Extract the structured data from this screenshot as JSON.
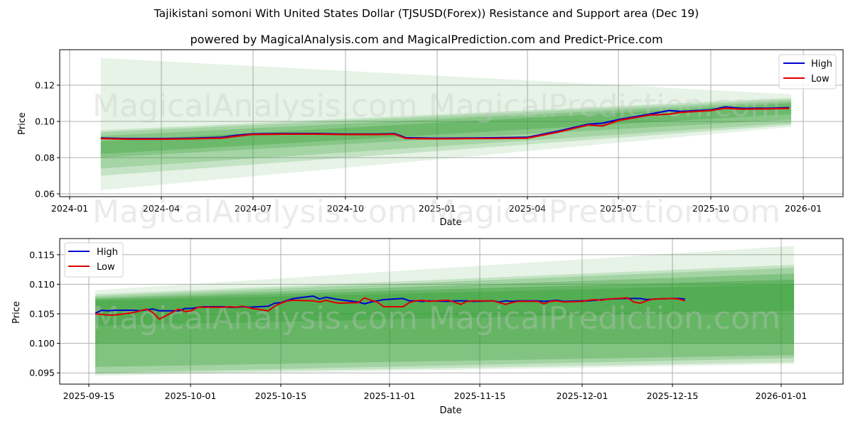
{
  "header": {
    "title": "Tajikistani somoni With United States Dollar (TJSUSD(Forex)) Resistance and Support area (Dec 19)",
    "subtitle": "powered by MagicalAnalysis.com and MagicalPrediction.com and Predict-Price.com"
  },
  "watermarks": [
    "MagicalAnalysis.com",
    "MagicalPrediction.com"
  ],
  "colors": {
    "high": "#0000cc",
    "low": "#dd0000",
    "band": "#2e9a2e",
    "grid": "#b0b0b0"
  },
  "chart_data": [
    {
      "type": "line",
      "title": "Full history with resistance/support bands",
      "xlabel": "Date",
      "ylabel": "Price",
      "ylim": [
        0.059,
        0.14
      ],
      "yticks": [
        "0.06",
        "0.08",
        "0.10",
        "0.12"
      ],
      "xticks": [
        "2024-01",
        "2024-04",
        "2024-07",
        "2024-10",
        "2025-01",
        "2025-04",
        "2025-07",
        "2025-10",
        "2026-01"
      ],
      "grid": true,
      "legend": {
        "position": "upper right",
        "entries": [
          "High",
          "Low"
        ]
      },
      "x": [
        "2024-02-01",
        "2024-03-01",
        "2024-04-01",
        "2024-05-01",
        "2024-06-01",
        "2024-06-15",
        "2024-07-01",
        "2024-08-01",
        "2024-09-01",
        "2024-10-01",
        "2024-11-01",
        "2024-11-20",
        "2024-12-01",
        "2025-01-01",
        "2025-02-01",
        "2025-03-01",
        "2025-04-01",
        "2025-05-01",
        "2025-06-01",
        "2025-06-15",
        "2025-07-01",
        "2025-08-01",
        "2025-08-20",
        "2025-09-01",
        "2025-10-01",
        "2025-10-15",
        "2025-11-01",
        "2025-12-01",
        "2025-12-18"
      ],
      "series": [
        {
          "name": "High",
          "values": [
            0.0908,
            0.0905,
            0.0905,
            0.0907,
            0.0912,
            0.0923,
            0.0931,
            0.0933,
            0.0933,
            0.093,
            0.093,
            0.0932,
            0.091,
            0.0907,
            0.0908,
            0.091,
            0.0912,
            0.0945,
            0.0985,
            0.099,
            0.101,
            0.104,
            0.106,
            0.1055,
            0.1063,
            0.108,
            0.1072,
            0.1073,
            0.1076
          ]
        },
        {
          "name": "Low",
          "values": [
            0.0905,
            0.0902,
            0.0902,
            0.0904,
            0.0908,
            0.0918,
            0.0928,
            0.093,
            0.093,
            0.0928,
            0.0928,
            0.0929,
            0.0906,
            0.0904,
            0.0905,
            0.0906,
            0.0908,
            0.094,
            0.098,
            0.0975,
            0.1005,
            0.1035,
            0.104,
            0.105,
            0.106,
            0.1073,
            0.1068,
            0.107,
            0.1072
          ]
        }
      ],
      "bands": [
        {
          "start": "2024-02-01",
          "end": "2025-12-20",
          "upper": [
            0.135,
            0.115
          ],
          "lower": [
            0.062,
            0.097
          ],
          "opacity": 0.12
        },
        {
          "start": "2024-02-01",
          "end": "2025-12-20",
          "upper": [
            0.095,
            0.113
          ],
          "lower": [
            0.07,
            0.098
          ],
          "opacity": 0.18
        },
        {
          "start": "2024-02-01",
          "end": "2025-12-20",
          "upper": [
            0.094,
            0.112
          ],
          "lower": [
            0.074,
            0.099
          ],
          "opacity": 0.2
        },
        {
          "start": "2024-02-01",
          "end": "2025-12-20",
          "upper": [
            0.092,
            0.111
          ],
          "lower": [
            0.08,
            0.101
          ],
          "opacity": 0.25
        },
        {
          "start": "2024-02-01",
          "end": "2025-12-20",
          "upper": [
            0.089,
            0.11
          ],
          "lower": [
            0.082,
            0.104
          ],
          "opacity": 0.3
        }
      ]
    },
    {
      "type": "line",
      "title": "Recent period zoom with resistance/support bands",
      "xlabel": "Date",
      "ylabel": "Price",
      "ylim": [
        0.0932,
        0.1178
      ],
      "yticks": [
        "0.095",
        "0.100",
        "0.105",
        "0.110",
        "0.115"
      ],
      "xticks": [
        "2025-09-15",
        "2025-10-01",
        "2025-10-15",
        "2025-11-01",
        "2025-11-15",
        "2025-12-01",
        "2025-12-15",
        "2026-01-01"
      ],
      "grid": true,
      "legend": {
        "position": "upper left",
        "entries": [
          "High",
          "Low"
        ]
      },
      "x": [
        "09-16",
        "09-17",
        "09-18",
        "09-19",
        "09-22",
        "09-23",
        "09-24",
        "09-25",
        "09-26",
        "09-29",
        "09-30",
        "10-01",
        "10-02",
        "10-03",
        "10-06",
        "10-07",
        "10-08",
        "10-09",
        "10-10",
        "10-13",
        "10-14",
        "10-15",
        "10-16",
        "10-17",
        "10-20",
        "10-21",
        "10-22",
        "10-23",
        "10-24",
        "10-27",
        "10-28",
        "10-29",
        "10-30",
        "10-31",
        "11-03",
        "11-04",
        "11-05",
        "11-06",
        "11-07",
        "11-10",
        "11-11",
        "11-12",
        "11-13",
        "11-14",
        "11-17",
        "11-18",
        "11-19",
        "11-20",
        "11-21",
        "11-24",
        "11-25",
        "11-26",
        "11-27",
        "11-28",
        "12-01",
        "12-02",
        "12-03",
        "12-04",
        "12-05",
        "12-08",
        "12-09",
        "12-10",
        "12-11",
        "12-12",
        "12-15",
        "12-16",
        "12-17"
      ],
      "series": [
        {
          "name": "High",
          "values": [
            0.1051,
            0.1056,
            0.1055,
            0.1056,
            0.1056,
            0.1055,
            0.1057,
            0.1058,
            0.1055,
            0.1055,
            0.1059,
            0.1059,
            0.1061,
            0.1062,
            0.1062,
            0.1061,
            0.1061,
            0.1062,
            0.1061,
            0.1063,
            0.1068,
            0.1069,
            0.1073,
            0.1076,
            0.108,
            0.1075,
            0.1078,
            0.1076,
            0.1074,
            0.107,
            0.1067,
            0.107,
            0.1072,
            0.1074,
            0.1076,
            0.1072,
            0.1072,
            0.1071,
            0.1072,
            0.1071,
            0.1072,
            0.1072,
            0.1072,
            0.1071,
            0.1072,
            0.107,
            0.1072,
            0.1071,
            0.1072,
            0.1072,
            0.1071,
            0.1072,
            0.1073,
            0.1071,
            0.1072,
            0.1072,
            0.1073,
            0.1074,
            0.1075,
            0.1076,
            0.1076,
            0.1076,
            0.1074,
            0.1075,
            0.1076,
            0.1076,
            0.1075
          ]
        },
        {
          "name": "Low",
          "values": [
            0.105,
            0.1049,
            0.1048,
            0.1048,
            0.1052,
            0.1055,
            0.1058,
            0.1052,
            0.1041,
            0.1058,
            0.1054,
            0.1055,
            0.1061,
            0.1061,
            0.1061,
            0.1062,
            0.1061,
            0.1063,
            0.106,
            0.1055,
            0.1063,
            0.1068,
            0.1072,
            0.1073,
            0.1072,
            0.107,
            0.1073,
            0.107,
            0.1068,
            0.1069,
            0.1077,
            0.1073,
            0.107,
            0.1062,
            0.1062,
            0.1069,
            0.1072,
            0.1073,
            0.1071,
            0.1073,
            0.107,
            0.1066,
            0.1071,
            0.1072,
            0.1072,
            0.1069,
            0.1066,
            0.1069,
            0.1071,
            0.1071,
            0.1067,
            0.1071,
            0.1072,
            0.107,
            0.1071,
            0.1073,
            0.1074,
            0.1073,
            0.1075,
            0.1077,
            0.107,
            0.1068,
            0.1072,
            0.1075,
            0.1076,
            0.1075,
            0.1072
          ]
        }
      ],
      "bands": [
        {
          "start": "2025-09-16",
          "end": "2026-01-03",
          "upper": [
            0.109,
            0.1165
          ],
          "lower": [
            0.0945,
            0.0965
          ],
          "opacity": 0.12
        },
        {
          "start": "2025-09-16",
          "end": "2026-01-03",
          "upper": [
            0.1083,
            0.1133
          ],
          "lower": [
            0.0948,
            0.0968
          ],
          "opacity": 0.18
        },
        {
          "start": "2025-09-16",
          "end": "2026-01-03",
          "upper": [
            0.108,
            0.1128
          ],
          "lower": [
            0.095,
            0.0975
          ],
          "opacity": 0.22
        },
        {
          "start": "2025-09-16",
          "end": "2026-01-03",
          "upper": [
            0.1077,
            0.1118
          ],
          "lower": [
            0.096,
            0.098
          ],
          "opacity": 0.28
        },
        {
          "start": "2025-09-16",
          "end": "2026-01-03",
          "upper": [
            0.1075,
            0.1108
          ],
          "lower": [
            0.1,
            0.1
          ],
          "opacity": 0.34
        },
        {
          "start": "2025-09-16",
          "end": "2026-01-03",
          "upper": [
            0.1072,
            0.11
          ],
          "lower": [
            0.103,
            0.1055
          ],
          "opacity": 0.32
        }
      ]
    }
  ]
}
